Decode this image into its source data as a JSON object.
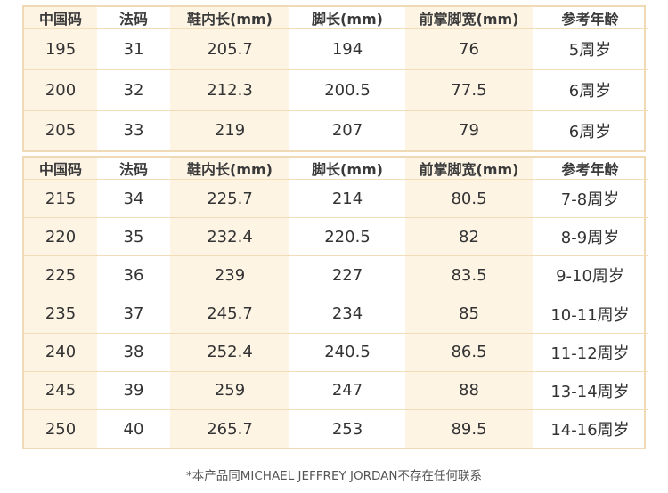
{
  "headers": [
    "中国码",
    "法码",
    "鞋内长(mm)",
    "脚长(mm)",
    "前掌脚宽(mm)",
    "参考年龄"
  ],
  "table_a": [
    [
      "195",
      "31",
      "205.7",
      "194",
      "76",
      "5周岁"
    ],
    [
      "200",
      "32",
      "212.3",
      "200.5",
      "77.5",
      "6周岁"
    ],
    [
      "205",
      "33",
      "219",
      "207",
      "79",
      "6周岁"
    ]
  ],
  "table_b": [
    [
      "215",
      "34",
      "225.7",
      "214",
      "80.5",
      "7-8周岁"
    ],
    [
      "220",
      "35",
      "232.4",
      "220.5",
      "82",
      "8-9周岁"
    ],
    [
      "225",
      "36",
      "239",
      "227",
      "83.5",
      "9-10周岁"
    ],
    [
      "235",
      "37",
      "245.7",
      "234",
      "85",
      "10-11周岁"
    ],
    [
      "240",
      "38",
      "252.4",
      "240.5",
      "86.5",
      "11-12周岁"
    ],
    [
      "245",
      "39",
      "259",
      "247",
      "88",
      "13-14周岁"
    ],
    [
      "250",
      "40",
      "265.7",
      "253",
      "89.5",
      "14-16周岁"
    ]
  ],
  "footnote": "*本产品同MICHAEL JEFFREY JORDAN不存在任何联系",
  "colors": {
    "border": "#f0d9b5",
    "tint": "#fdf4e4",
    "text": "#333333"
  }
}
